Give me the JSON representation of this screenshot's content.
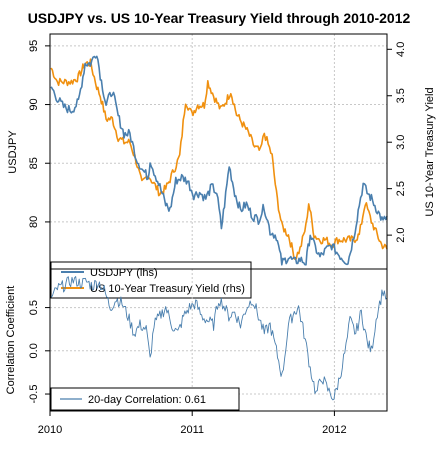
{
  "title": "USDJPY vs. US 10-Year Treasury Yield through 2010-2012",
  "colors": {
    "usdjpy": "#4a7fae",
    "yield": "#f0900f",
    "correlation": "#4a7fae",
    "grid": "#c8c8c8",
    "frame": "#000000"
  },
  "chart_data": [
    {
      "type": "line",
      "title": "USDJPY vs. US 10-Year Treasury Yield through 2010-2012",
      "x_range": [
        "2010-01-01",
        "2012-05-15"
      ],
      "x_ticks": [
        "2010",
        "2011",
        "2012"
      ],
      "ylabel_left": "USDJPY",
      "ylabel_right": "US 10-Year Treasury Yield",
      "ylim_left": [
        76.5,
        95.5
      ],
      "ylim_right": [
        1.7,
        4.1
      ],
      "yticks_left": [
        "80",
        "85",
        "90",
        "95"
      ],
      "yticks_right": [
        "2.0",
        "2.5",
        "3.0",
        "3.5",
        "4.0"
      ],
      "grid": true,
      "legend_position": "bottom-left",
      "series": [
        {
          "name": "USDJPY (lhs)",
          "axis": "left",
          "x": [
            "2010-01-04",
            "2010-01-20",
            "2010-02-05",
            "2010-02-25",
            "2010-03-15",
            "2010-04-01",
            "2010-04-15",
            "2010-05-01",
            "2010-05-10",
            "2010-05-25",
            "2010-06-10",
            "2010-06-25",
            "2010-07-10",
            "2010-07-25",
            "2010-08-10",
            "2010-08-25",
            "2010-09-10",
            "2010-09-15",
            "2010-09-25",
            "2010-10-10",
            "2010-10-25",
            "2010-11-05",
            "2010-11-20",
            "2010-12-05",
            "2010-12-20",
            "2011-01-05",
            "2011-01-20",
            "2011-02-05",
            "2011-02-20",
            "2011-03-05",
            "2011-03-17",
            "2011-03-25",
            "2011-04-06",
            "2011-04-20",
            "2011-05-05",
            "2011-05-20",
            "2011-06-05",
            "2011-06-20",
            "2011-07-05",
            "2011-07-20",
            "2011-08-05",
            "2011-08-19",
            "2011-09-05",
            "2011-09-20",
            "2011-10-05",
            "2011-10-20",
            "2011-10-31",
            "2011-11-10",
            "2011-11-25",
            "2011-12-10",
            "2011-12-25",
            "2012-01-10",
            "2012-01-25",
            "2012-02-05",
            "2012-02-20",
            "2012-03-05",
            "2012-03-15",
            "2012-03-25",
            "2012-04-05",
            "2012-04-20",
            "2012-05-05",
            "2012-05-15"
          ],
          "values": [
            91.5,
            90.5,
            89.8,
            89.5,
            90.2,
            93.5,
            93.5,
            94.5,
            92.5,
            90.0,
            91.2,
            89.0,
            87.5,
            87.5,
            85.5,
            84.5,
            83.8,
            85.3,
            84.3,
            83.0,
            81.5,
            81.0,
            83.5,
            83.8,
            83.5,
            82.3,
            82.5,
            82.0,
            83.0,
            82.5,
            79.5,
            81.5,
            84.8,
            82.5,
            81.0,
            81.5,
            80.5,
            80.2,
            81.3,
            79.2,
            78.8,
            76.5,
            77.0,
            76.6,
            76.8,
            76.5,
            79.0,
            78.0,
            77.0,
            77.6,
            78.0,
            77.3,
            76.8,
            76.6,
            78.8,
            81.5,
            83.2,
            82.5,
            82.0,
            81.0,
            80.0,
            80.5
          ]
        },
        {
          "name": "US 10-Year Treasury Yield (rhs)",
          "axis": "right",
          "x": [
            "2010-01-04",
            "2010-01-20",
            "2010-02-05",
            "2010-02-25",
            "2010-03-15",
            "2010-04-01",
            "2010-04-15",
            "2010-05-01",
            "2010-05-10",
            "2010-05-25",
            "2010-06-10",
            "2010-06-25",
            "2010-07-10",
            "2010-07-25",
            "2010-08-10",
            "2010-08-25",
            "2010-09-10",
            "2010-09-25",
            "2010-10-10",
            "2010-10-25",
            "2010-11-05",
            "2010-11-15",
            "2010-11-30",
            "2010-12-15",
            "2010-12-31",
            "2011-01-15",
            "2011-02-01",
            "2011-02-10",
            "2011-02-25",
            "2011-03-15",
            "2011-03-30",
            "2011-04-10",
            "2011-04-25",
            "2011-05-10",
            "2011-05-25",
            "2011-06-10",
            "2011-06-25",
            "2011-07-05",
            "2011-07-25",
            "2011-08-05",
            "2011-08-19",
            "2011-09-05",
            "2011-09-22",
            "2011-10-05",
            "2011-10-20",
            "2011-10-27",
            "2011-11-10",
            "2011-11-25",
            "2011-12-10",
            "2011-12-25",
            "2012-01-10",
            "2012-01-25",
            "2012-02-05",
            "2012-02-20",
            "2012-03-05",
            "2012-03-20",
            "2012-04-05",
            "2012-04-20",
            "2012-05-01",
            "2012-05-15"
          ],
          "values": [
            3.8,
            3.65,
            3.65,
            3.65,
            3.7,
            3.85,
            3.85,
            3.6,
            3.5,
            3.25,
            3.25,
            3.05,
            3.0,
            3.0,
            2.8,
            2.55,
            2.65,
            2.55,
            2.45,
            2.5,
            2.6,
            2.7,
            2.85,
            3.45,
            3.3,
            3.4,
            3.4,
            3.65,
            3.5,
            3.35,
            3.45,
            3.55,
            3.3,
            3.2,
            3.1,
            2.95,
            2.9,
            3.1,
            2.85,
            2.45,
            2.1,
            2.0,
            1.75,
            1.85,
            2.1,
            2.35,
            2.0,
            1.95,
            1.95,
            1.9,
            1.95,
            1.95,
            1.95,
            1.95,
            2.0,
            2.35,
            2.15,
            2.0,
            1.9,
            1.85
          ]
        }
      ]
    },
    {
      "type": "line",
      "x_range": [
        "2010-01-01",
        "2012-05-15"
      ],
      "x_ticks": [
        "2010",
        "2011",
        "2012"
      ],
      "ylabel": "Correlation Coefficient",
      "ylim": [
        -0.65,
        0.9
      ],
      "yticks": [
        "-0.5",
        "0.0",
        "0.5"
      ],
      "grid": true,
      "legend_position": "bottom-left",
      "series": [
        {
          "name": "20-day Correlation: 0.61",
          "x": [
            "2010-01-04",
            "2010-01-20",
            "2010-02-05",
            "2010-02-20",
            "2010-03-05",
            "2010-03-20",
            "2010-04-05",
            "2010-04-20",
            "2010-05-05",
            "2010-05-20",
            "2010-06-05",
            "2010-06-20",
            "2010-07-05",
            "2010-07-20",
            "2010-08-05",
            "2010-08-20",
            "2010-09-05",
            "2010-09-15",
            "2010-09-25",
            "2010-10-10",
            "2010-10-25",
            "2010-11-10",
            "2010-11-25",
            "2010-12-10",
            "2010-12-25",
            "2011-01-10",
            "2011-01-25",
            "2011-02-10",
            "2011-02-25",
            "2011-03-10",
            "2011-03-20",
            "2011-04-05",
            "2011-04-20",
            "2011-05-05",
            "2011-05-20",
            "2011-06-05",
            "2011-06-20",
            "2011-07-05",
            "2011-07-20",
            "2011-08-05",
            "2011-08-20",
            "2011-09-05",
            "2011-09-20",
            "2011-10-01",
            "2011-10-15",
            "2011-10-31",
            "2011-11-15",
            "2011-11-30",
            "2011-12-15",
            "2011-12-31",
            "2012-01-15",
            "2012-01-31",
            "2012-02-10",
            "2012-02-25",
            "2012-03-10",
            "2012-03-25",
            "2012-04-05",
            "2012-04-20",
            "2012-05-05",
            "2012-05-15"
          ],
          "values": [
            0.6,
            0.72,
            0.75,
            0.8,
            0.82,
            0.78,
            0.8,
            0.75,
            0.8,
            0.7,
            0.5,
            0.6,
            0.55,
            0.4,
            0.2,
            0.3,
            0.25,
            -0.1,
            0.3,
            0.4,
            0.5,
            0.3,
            0.2,
            0.4,
            0.5,
            0.55,
            0.4,
            0.35,
            0.3,
            0.6,
            0.55,
            0.4,
            0.45,
            0.3,
            0.5,
            0.6,
            0.4,
            0.2,
            0.3,
            0.0,
            -0.3,
            0.3,
            0.45,
            0.5,
            0.2,
            -0.2,
            -0.5,
            -0.3,
            -0.45,
            -0.55,
            -0.3,
            0.05,
            0.35,
            0.2,
            0.45,
            0.1,
            0.0,
            0.45,
            0.7,
            0.61
          ]
        }
      ]
    }
  ]
}
